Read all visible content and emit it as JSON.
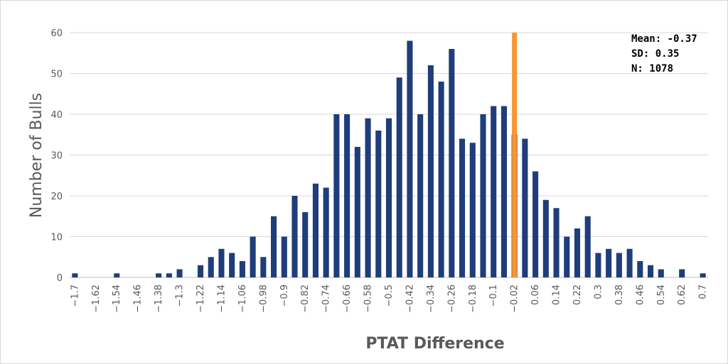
{
  "chart_data": {
    "type": "bar",
    "title": "",
    "xlabel": "PTAT Difference",
    "ylabel": "Number of Bulls",
    "ylim": [
      0,
      60
    ],
    "yticks": [
      0,
      10,
      20,
      30,
      40,
      50,
      60
    ],
    "grid": true,
    "bar_color": "#1f3d7a",
    "marker_color": "#f79433",
    "marker_x": -0.02,
    "categories": [
      "-1.7",
      "-1.66",
      "-1.62",
      "-1.58",
      "-1.54",
      "-1.5",
      "-1.46",
      "-1.42",
      "-1.38",
      "-1.34",
      "-1.3",
      "-1.26",
      "-1.22",
      "-1.18",
      "-1.14",
      "-1.1",
      "-1.06",
      "-1.02",
      "-0.98",
      "-0.94",
      "-0.9",
      "-0.86",
      "-0.82",
      "-0.78",
      "-0.74",
      "-0.7",
      "-0.66",
      "-0.62",
      "-0.58",
      "-0.54",
      "-0.5",
      "-0.46",
      "-0.42",
      "-0.38",
      "-0.34",
      "-0.3",
      "-0.26",
      "-0.22",
      "-0.18",
      "-0.14",
      "-0.1",
      "-0.06",
      "-0.02",
      "0.02",
      "0.06",
      "0.1",
      "0.14",
      "0.18",
      "0.22",
      "0.26",
      "0.3",
      "0.34",
      "0.38",
      "0.42",
      "0.46",
      "0.5",
      "0.54",
      "0.58",
      "0.62",
      "0.66",
      "0.7"
    ],
    "tick_labels": [
      "-1.7",
      "-1.62",
      "-1.54",
      "-1.46",
      "-1.38",
      "-1.3",
      "-1.22",
      "-1.14",
      "-1.06",
      "-0.98",
      "-0.9",
      "-0.82",
      "-0.74",
      "-0.66",
      "-0.58",
      "-0.5",
      "-0.42",
      "-0.34",
      "-0.26",
      "-0.18",
      "-0.1",
      "-0.02",
      "0.06",
      "0.14",
      "0.22",
      "0.3",
      "0.38",
      "0.46",
      "0.54",
      "0.62",
      "0.7"
    ],
    "values": [
      1,
      0,
      0,
      0,
      1,
      0,
      0,
      0,
      1,
      1,
      2,
      0,
      3,
      5,
      7,
      6,
      4,
      10,
      5,
      15,
      10,
      20,
      16,
      23,
      22,
      40,
      40,
      32,
      39,
      36,
      39,
      49,
      58,
      40,
      52,
      48,
      56,
      34,
      33,
      40,
      42,
      42,
      35,
      34,
      26,
      19,
      17,
      10,
      12,
      15,
      6,
      7,
      6,
      7,
      4,
      3,
      2,
      0,
      2,
      0,
      1
    ],
    "annotations": [
      "Mean: -0.37",
      "SD: 0.35",
      "N: 1078"
    ]
  }
}
